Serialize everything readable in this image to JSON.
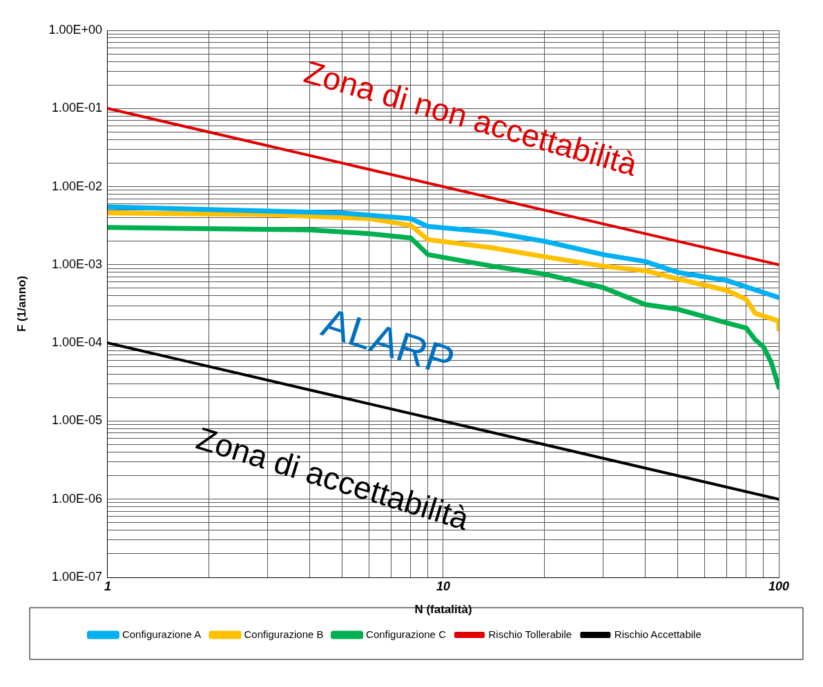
{
  "chart_data": {
    "type": "line",
    "xlabel": "N (fatalità)",
    "ylabel": "F (1/anno)",
    "log": "xy",
    "grid": true,
    "legend": "bottom",
    "marker": "none",
    "line_style": "solid",
    "xlim": [
      1,
      100
    ],
    "xticks": [
      1,
      {
        "value": 2,
        "label": null
      },
      {
        "value": 3,
        "label": null
      },
      {
        "value": 4,
        "label": null
      },
      {
        "value": 5,
        "label": null
      },
      {
        "value": 6,
        "label": null
      },
      {
        "value": 7,
        "label": null
      },
      {
        "value": 8,
        "label": null
      },
      {
        "value": 9,
        "label": null
      },
      10,
      {
        "value": 20,
        "label": null
      },
      {
        "value": 30,
        "label": null
      },
      {
        "value": 40,
        "label": null
      },
      {
        "value": 50,
        "label": null
      },
      {
        "value": 60,
        "label": null
      },
      {
        "value": 70,
        "label": null
      },
      {
        "value": 80,
        "label": null
      },
      {
        "value": 90,
        "label": null
      },
      100
    ],
    "ylim": [
      1e-07,
      1
    ],
    "yticks": [
      {
        "value": 1e-07,
        "label": "1.00E-07"
      },
      {
        "value": 2e-07,
        "label": null
      },
      {
        "value": 3e-07,
        "label": null
      },
      {
        "value": 4e-07,
        "label": null
      },
      {
        "value": 5e-07,
        "label": null
      },
      {
        "value": 6e-07,
        "label": null
      },
      {
        "value": 7e-07,
        "label": null
      },
      {
        "value": 8e-07,
        "label": null
      },
      {
        "value": 9e-07,
        "label": null
      },
      {
        "value": 1e-06,
        "label": "1.00E-06"
      },
      {
        "value": 2e-06,
        "label": null
      },
      {
        "value": 3e-06,
        "label": null
      },
      {
        "value": 4e-06,
        "label": null
      },
      {
        "value": 5e-06,
        "label": null
      },
      {
        "value": 6e-06,
        "label": null
      },
      {
        "value": 7e-06,
        "label": null
      },
      {
        "value": 8e-06,
        "label": null
      },
      {
        "value": 9e-06,
        "label": null
      },
      {
        "value": 1e-05,
        "label": "1.00E-05"
      },
      {
        "value": 2e-05,
        "label": null
      },
      {
        "value": 3e-05,
        "label": null
      },
      {
        "value": 4e-05,
        "label": null
      },
      {
        "value": 5e-05,
        "label": null
      },
      {
        "value": 6e-05,
        "label": null
      },
      {
        "value": 7e-05,
        "label": null
      },
      {
        "value": 8e-05,
        "label": null
      },
      {
        "value": 9e-05,
        "label": null
      },
      {
        "value": 0.0001,
        "label": "1.00E-04"
      },
      {
        "value": 0.0002,
        "label": null
      },
      {
        "value": 0.0003,
        "label": null
      },
      {
        "value": 0.0004,
        "label": null
      },
      {
        "value": 0.0005,
        "label": null
      },
      {
        "value": 0.0006,
        "label": null
      },
      {
        "value": 0.0007,
        "label": null
      },
      {
        "value": 0.0008,
        "label": null
      },
      {
        "value": 0.0009,
        "label": null
      },
      {
        "value": 0.001,
        "label": "1.00E-03"
      },
      {
        "value": 0.002,
        "label": null
      },
      {
        "value": 0.003,
        "label": null
      },
      {
        "value": 0.004,
        "label": null
      },
      {
        "value": 0.005,
        "label": null
      },
      {
        "value": 0.006,
        "label": null
      },
      {
        "value": 0.007,
        "label": null
      },
      {
        "value": 0.008,
        "label": null
      },
      {
        "value": 0.009,
        "label": null
      },
      {
        "value": 0.01,
        "label": "1.00E-02"
      },
      {
        "value": 0.02,
        "label": null
      },
      {
        "value": 0.03,
        "label": null
      },
      {
        "value": 0.04,
        "label": null
      },
      {
        "value": 0.05,
        "label": null
      },
      {
        "value": 0.06,
        "label": null
      },
      {
        "value": 0.07,
        "label": null
      },
      {
        "value": 0.08,
        "label": null
      },
      {
        "value": 0.09,
        "label": null
      },
      {
        "value": 0.1,
        "label": "1.00E-01"
      },
      {
        "value": 0.2,
        "label": null
      },
      {
        "value": 0.3,
        "label": null
      },
      {
        "value": 0.4,
        "label": null
      },
      {
        "value": 0.5,
        "label": null
      },
      {
        "value": 0.6,
        "label": null
      },
      {
        "value": 0.7,
        "label": null
      },
      {
        "value": 0.8,
        "label": null
      },
      {
        "value": 0.9,
        "label": null
      },
      {
        "value": 1,
        "label": "1.00E+00"
      }
    ],
    "series": [
      {
        "name": "Configurazione A",
        "color": "#00b0f0",
        "x": [
          1,
          5,
          8,
          9,
          14,
          20,
          30,
          40,
          50,
          70,
          100
        ],
        "values": [
          0.0055,
          0.0046,
          0.0039,
          0.0031,
          0.0026,
          0.002,
          0.00135,
          0.0011,
          0.0008,
          0.00063,
          0.00038
        ]
      },
      {
        "name": "Configurazione B",
        "color": "#ffc000",
        "x": [
          1,
          3,
          6,
          8,
          9,
          14,
          20,
          30,
          40,
          50,
          70,
          80,
          85,
          100,
          100
        ],
        "values": [
          0.0046,
          0.0044,
          0.0039,
          0.0032,
          0.0021,
          0.00165,
          0.00127,
          0.00096,
          0.00084,
          0.00066,
          0.00047,
          0.00036,
          0.00024,
          0.00019,
          0.00015
        ]
      },
      {
        "name": "Configurazione C",
        "color": "#00b050",
        "x": [
          1,
          4,
          6,
          8,
          9,
          14,
          20,
          30,
          40,
          50,
          70,
          80,
          85,
          90,
          95,
          100
        ],
        "values": [
          0.003,
          0.0028,
          0.0025,
          0.0022,
          0.00135,
          0.00096,
          0.00076,
          0.00051,
          0.00031,
          0.00027,
          0.00018,
          0.000155,
          0.00011,
          8.9e-05,
          5.6e-05,
          2.7e-05
        ]
      },
      {
        "name": "Rischio Tollerabile",
        "color": "#e00000",
        "x": [
          1,
          100
        ],
        "values": [
          0.1,
          0.001
        ]
      },
      {
        "name": "Rischio Accettabile",
        "color": "#000000",
        "x": [
          1,
          100
        ],
        "values": [
          0.0001,
          1e-06
        ]
      }
    ],
    "annotations": [
      "Zona di non accettabilità",
      "ALARP",
      "Zona di accettabilità"
    ]
  }
}
